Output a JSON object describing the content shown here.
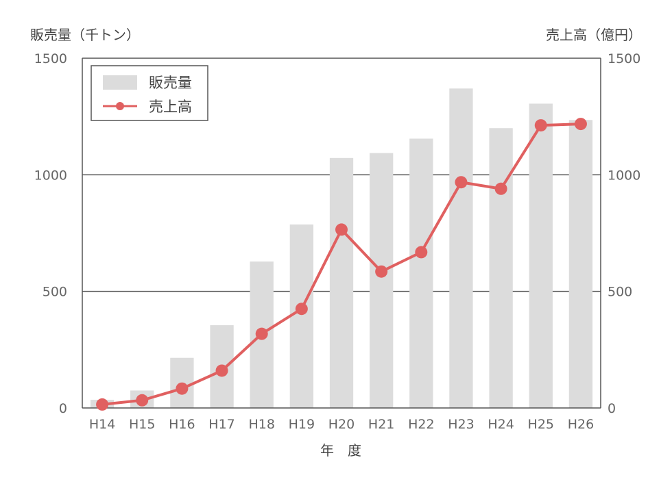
{
  "chart_data": {
    "type": "bar",
    "categories": [
      "H14",
      "H15",
      "H16",
      "H17",
      "H18",
      "H19",
      "H20",
      "H21",
      "H22",
      "H23",
      "H24",
      "H25",
      "H26"
    ],
    "series": [
      {
        "name": "販売量",
        "type": "bar",
        "axis": "left",
        "color": "#dcdcdc",
        "values": [
          35,
          75,
          215,
          355,
          628,
          787,
          1072,
          1093,
          1155,
          1370,
          1200,
          1305,
          1235
        ]
      },
      {
        "name": "売上高",
        "type": "line",
        "axis": "right",
        "color": "#e06060",
        "values": [
          15,
          33,
          83,
          160,
          318,
          425,
          765,
          585,
          668,
          968,
          940,
          1212,
          1218
        ]
      }
    ],
    "ylabel_left": "販売量（千トン）",
    "ylabel_right": "売上高（億円）",
    "xlabel": "年　度",
    "ylim": [
      0,
      1500
    ],
    "yticks": [
      0,
      500,
      1000,
      1500
    ],
    "grid": true,
    "legend": "top-left"
  }
}
